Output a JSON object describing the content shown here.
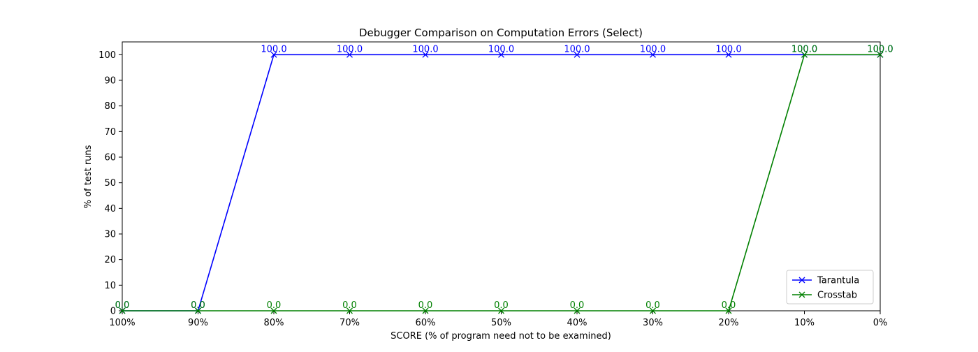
{
  "chart_data": {
    "type": "line",
    "title": "Debugger Comparison on Computation Errors (Select)",
    "xlabel": "SCORE (% of program need not to be examined)",
    "ylabel": "% of test runs",
    "categories": [
      "100%",
      "90%",
      "80%",
      "70%",
      "60%",
      "50%",
      "40%",
      "30%",
      "20%",
      "10%",
      "0%"
    ],
    "ylim": [
      0,
      105
    ],
    "yticks": [
      0,
      10,
      20,
      30,
      40,
      50,
      60,
      70,
      80,
      90,
      100
    ],
    "grid": false,
    "legend_position": "lower-right",
    "series": [
      {
        "name": "Tarantula",
        "color": "#0000ff",
        "marker": "x",
        "values": [
          0.0,
          0.0,
          100.0,
          100.0,
          100.0,
          100.0,
          100.0,
          100.0,
          100.0,
          100.0,
          100.0
        ],
        "labels": [
          "0.0",
          "0.0",
          "100.0",
          "100.0",
          "100.0",
          "100.0",
          "100.0",
          "100.0",
          "100.0",
          "100.0",
          "100.0"
        ]
      },
      {
        "name": "Crosstab",
        "color": "#008000",
        "marker": "x",
        "values": [
          0.0,
          0.0,
          0.0,
          0.0,
          0.0,
          0.0,
          0.0,
          0.0,
          0.0,
          100.0,
          100.0
        ],
        "labels": [
          "0.0",
          "0.0",
          "0.0",
          "0.0",
          "0.0",
          "0.0",
          "0.0",
          "0.0",
          "0.0",
          "100.0",
          "100.0"
        ]
      }
    ]
  }
}
